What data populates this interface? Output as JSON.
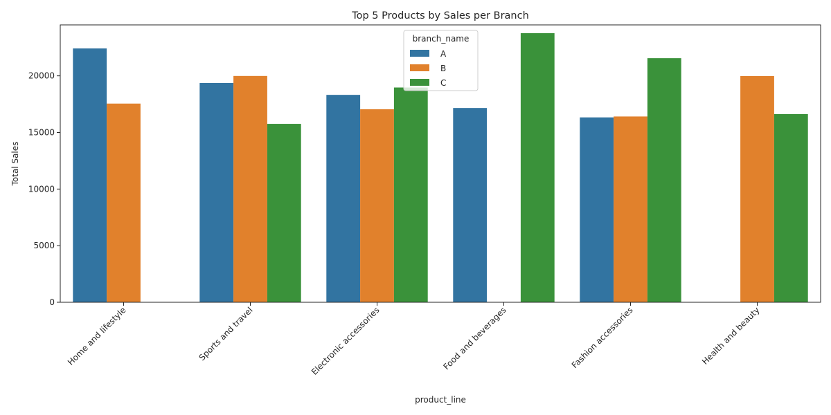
{
  "chart_data": {
    "type": "bar",
    "title": "Top 5 Products by Sales per Branch",
    "xlabel": "product_line",
    "ylabel": "Total Sales",
    "ylim": [
      0,
      24500
    ],
    "yticks": [
      0,
      5000,
      10000,
      15000,
      20000
    ],
    "categories": [
      "Home and lifestyle",
      "Sports and travel",
      "Electronic accessories",
      "Food and beverages",
      "Fashion accessories",
      "Health and beauty"
    ],
    "legend": {
      "title": "branch_name",
      "placement": "top-center"
    },
    "grid": false,
    "series": [
      {
        "name": "A",
        "color": "#3274a1",
        "values": [
          22420,
          19370,
          18320,
          17160,
          16330,
          null
        ]
      },
      {
        "name": "B",
        "color": "#e1812c",
        "values": [
          17550,
          19990,
          17050,
          null,
          16410,
          19980
        ]
      },
      {
        "name": "C",
        "color": "#3a923a",
        "values": [
          null,
          15760,
          18970,
          23770,
          21560,
          16620
        ]
      }
    ]
  }
}
